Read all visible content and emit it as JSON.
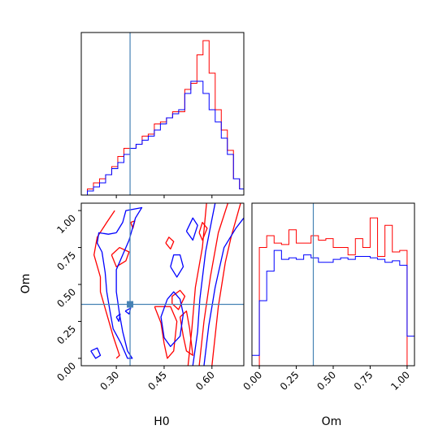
{
  "chart_data": [
    {
      "type": "histogram",
      "panel": "H0 marginal",
      "x_range": [
        0.19,
        0.7
      ],
      "truth": 0.3431,
      "colors": {
        "red": "#ff0000",
        "blue": "#0000ff",
        "truth": "#4682b4"
      },
      "series": [
        {
          "color": "red",
          "edges": [
            0.19,
            0.2091,
            0.2282,
            0.2473,
            0.2664,
            0.2855,
            0.3046,
            0.3237,
            0.3428,
            0.3619,
            0.381,
            0.4001,
            0.4192,
            0.4383,
            0.4574,
            0.4765,
            0.4956,
            0.5147,
            0.5338,
            0.5529,
            0.572,
            0.5911,
            0.6102,
            0.6293,
            0.6484,
            0.6675,
            0.6866,
            0.7
          ],
          "values": [
            0,
            3,
            6,
            8,
            10,
            14,
            19,
            23,
            23,
            25,
            29,
            30,
            35,
            36,
            38,
            41,
            41,
            52,
            55,
            69,
            76,
            60,
            42,
            32,
            22,
            8,
            3
          ]
        },
        {
          "color": "blue",
          "edges": [
            0.19,
            0.2091,
            0.2282,
            0.2473,
            0.2664,
            0.2855,
            0.3046,
            0.3237,
            0.3428,
            0.3619,
            0.381,
            0.4001,
            0.4192,
            0.4383,
            0.4574,
            0.4765,
            0.4956,
            0.5147,
            0.5338,
            0.5529,
            0.572,
            0.5911,
            0.6102,
            0.6293,
            0.6484,
            0.6675,
            0.6866,
            0.7
          ],
          "values": [
            0,
            2,
            4,
            6,
            10,
            13,
            16,
            20,
            23,
            25,
            27,
            29,
            32,
            35,
            38,
            40,
            42,
            50,
            56,
            56,
            50,
            42,
            36,
            28,
            20,
            8,
            3
          ]
        }
      ]
    },
    {
      "type": "contour",
      "panel": "H0 vs Om",
      "xlabel": "H0",
      "ylabel": "Om",
      "xlim": [
        0.19,
        0.7
      ],
      "ylim": [
        -0.05,
        1.05
      ],
      "x_ticks": [
        "0.30",
        "0.45",
        "0.60"
      ],
      "x_tick_values": [
        0.3,
        0.45,
        0.6
      ],
      "y_ticks": [
        "0.00",
        "0.25",
        "0.50",
        "0.75",
        "1.00"
      ],
      "y_tick_values": [
        0.0,
        0.25,
        0.5,
        0.75,
        1.0
      ],
      "truth": {
        "x": 0.3431,
        "y": 0.3653
      },
      "contours": [
        {
          "color": "red",
          "points": [
            [
              0.525,
              -0.05
            ],
            [
              0.537,
              0.2
            ],
            [
              0.548,
              0.48
            ],
            [
              0.57,
              0.75
            ],
            [
              0.583,
              1.05
            ]
          ]
        },
        {
          "color": "red",
          "points": [
            [
              0.56,
              -0.05
            ],
            [
              0.575,
              0.25
            ],
            [
              0.595,
              0.55
            ],
            [
              0.62,
              0.85
            ],
            [
              0.65,
              1.05
            ]
          ]
        },
        {
          "color": "red",
          "points": [
            [
              0.6,
              -0.05
            ],
            [
              0.62,
              0.35
            ],
            [
              0.642,
              0.65
            ],
            [
              0.66,
              0.82
            ],
            [
              0.69,
              1.05
            ]
          ]
        },
        {
          "color": "red",
          "points": [
            [
              0.295,
              1.0
            ],
            [
              0.27,
              0.92
            ],
            [
              0.24,
              0.82
            ],
            [
              0.23,
              0.7
            ],
            [
              0.25,
              0.55
            ],
            [
              0.25,
              0.45
            ],
            [
              0.27,
              0.3
            ],
            [
              0.29,
              0.15
            ],
            [
              0.31,
              0.02
            ],
            [
              0.3,
              0.0
            ]
          ]
        },
        {
          "color": "red",
          "points": [
            [
              0.42,
              0.35
            ],
            [
              0.44,
              0.24
            ],
            [
              0.45,
              0.1
            ],
            [
              0.46,
              0.0
            ],
            [
              0.48,
              0.05
            ],
            [
              0.49,
              0.25
            ],
            [
              0.47,
              0.35
            ],
            [
              0.42,
              0.35
            ]
          ]
        },
        {
          "color": "red",
          "points": [
            [
              0.5,
              0.28
            ],
            [
              0.51,
              0.15
            ],
            [
              0.52,
              0.05
            ],
            [
              0.54,
              0.02
            ],
            [
              0.53,
              0.2
            ],
            [
              0.52,
              0.32
            ],
            [
              0.5,
              0.28
            ]
          ]
        },
        {
          "color": "red",
          "points": [
            [
              0.285,
              0.7
            ],
            [
              0.3,
              0.62
            ],
            [
              0.33,
              0.66
            ],
            [
              0.34,
              0.72
            ],
            [
              0.31,
              0.75
            ],
            [
              0.285,
              0.7
            ]
          ]
        },
        {
          "color": "red",
          "points": [
            [
              0.475,
              0.37
            ],
            [
              0.495,
              0.33
            ],
            [
              0.515,
              0.42
            ],
            [
              0.5,
              0.46
            ],
            [
              0.475,
              0.42
            ],
            [
              0.475,
              0.37
            ]
          ]
        },
        {
          "color": "red",
          "points": [
            [
              0.455,
              0.78
            ],
            [
              0.47,
              0.74
            ],
            [
              0.48,
              0.79
            ],
            [
              0.465,
              0.82
            ],
            [
              0.455,
              0.78
            ]
          ]
        },
        {
          "color": "red",
          "points": [
            [
              0.56,
              0.85
            ],
            [
              0.57,
              0.8
            ],
            [
              0.585,
              0.88
            ],
            [
              0.57,
              0.92
            ],
            [
              0.56,
              0.85
            ]
          ]
        },
        {
          "color": "red",
          "points": [
            [
              0.345,
              0.92
            ],
            [
              0.352,
              0.88
            ],
            [
              0.358,
              0.93
            ],
            [
              0.345,
              0.92
            ]
          ]
        },
        {
          "color": "blue",
          "points": [
            [
              0.54,
              -0.05
            ],
            [
              0.555,
              0.18
            ],
            [
              0.562,
              0.4
            ],
            [
              0.58,
              0.72
            ],
            [
              0.598,
              0.92
            ],
            [
              0.61,
              1.05
            ]
          ]
        },
        {
          "color": "blue",
          "points": [
            [
              0.575,
              -0.05
            ],
            [
              0.59,
              0.22
            ],
            [
              0.61,
              0.48
            ],
            [
              0.638,
              0.75
            ],
            [
              0.675,
              0.88
            ],
            [
              0.7,
              0.95
            ]
          ]
        },
        {
          "color": "blue",
          "points": [
            [
              0.3,
              0.85
            ],
            [
              0.32,
              0.92
            ],
            [
              0.33,
              1.0
            ],
            [
              0.38,
              1.02
            ],
            [
              0.36,
              0.95
            ],
            [
              0.34,
              0.8
            ],
            [
              0.32,
              0.7
            ],
            [
              0.3,
              0.6
            ],
            [
              0.3,
              0.45
            ],
            [
              0.31,
              0.3
            ],
            [
              0.32,
              0.18
            ],
            [
              0.335,
              0.05
            ],
            [
              0.35,
              0.0
            ],
            [
              0.335,
              0.0
            ],
            [
              0.315,
              0.1
            ],
            [
              0.29,
              0.2
            ],
            [
              0.28,
              0.32
            ],
            [
              0.27,
              0.45
            ],
            [
              0.265,
              0.58
            ],
            [
              0.255,
              0.72
            ],
            [
              0.24,
              0.78
            ],
            [
              0.245,
              0.85
            ],
            [
              0.275,
              0.84
            ],
            [
              0.3,
              0.85
            ]
          ]
        },
        {
          "color": "blue",
          "points": [
            [
              0.46,
              0.4
            ],
            [
              0.44,
              0.28
            ],
            [
              0.45,
              0.14
            ],
            [
              0.47,
              0.08
            ],
            [
              0.5,
              0.15
            ],
            [
              0.51,
              0.3
            ],
            [
              0.5,
              0.4
            ],
            [
              0.48,
              0.45
            ],
            [
              0.46,
              0.4
            ]
          ]
        },
        {
          "color": "blue",
          "points": [
            [
              0.22,
              0.05
            ],
            [
              0.235,
              0.0
            ],
            [
              0.25,
              0.02
            ],
            [
              0.24,
              0.07
            ],
            [
              0.22,
              0.05
            ]
          ]
        },
        {
          "color": "blue",
          "points": [
            [
              0.47,
              0.62
            ],
            [
              0.49,
              0.55
            ],
            [
              0.51,
              0.62
            ],
            [
              0.5,
              0.7
            ],
            [
              0.48,
              0.7
            ],
            [
              0.47,
              0.62
            ]
          ]
        },
        {
          "color": "blue",
          "points": [
            [
              0.52,
              0.86
            ],
            [
              0.54,
              0.8
            ],
            [
              0.555,
              0.9
            ],
            [
              0.54,
              0.95
            ],
            [
              0.52,
              0.86
            ]
          ]
        },
        {
          "color": "blue",
          "points": [
            [
              0.3,
              0.28
            ],
            [
              0.308,
              0.25
            ],
            [
              0.312,
              0.3
            ],
            [
              0.3,
              0.28
            ]
          ]
        },
        {
          "color": "blue",
          "points": [
            [
              0.328,
              0.32
            ],
            [
              0.34,
              0.3
            ],
            [
              0.345,
              0.34
            ],
            [
              0.328,
              0.32
            ]
          ]
        }
      ]
    },
    {
      "type": "histogram",
      "panel": "Om marginal",
      "xlabel": "Om",
      "x_range": [
        -0.05,
        1.05
      ],
      "truth": 0.3653,
      "x_ticks": [
        "0.00",
        "0.25",
        "0.50",
        "0.75",
        "1.00"
      ],
      "x_tick_values": [
        0.0,
        0.25,
        0.5,
        0.75,
        1.0
      ],
      "series": [
        {
          "color": "red",
          "edges": [
            0.0,
            0.05,
            0.1,
            0.15,
            0.2,
            0.25,
            0.3,
            0.35,
            0.4,
            0.45,
            0.5,
            0.55,
            0.6,
            0.65,
            0.7,
            0.75,
            0.8,
            0.85,
            0.9,
            0.95,
            1.0
          ],
          "values": [
            80,
            88,
            83,
            82,
            92,
            83,
            83,
            88,
            85,
            86,
            80,
            80,
            75,
            86,
            80,
            100,
            74,
            95,
            77,
            78
          ]
        },
        {
          "color": "blue",
          "edges": [
            -0.05,
            0.0,
            0.05,
            0.1,
            0.15,
            0.2,
            0.25,
            0.3,
            0.35,
            0.4,
            0.45,
            0.5,
            0.55,
            0.6,
            0.65,
            0.7,
            0.75,
            0.8,
            0.85,
            0.9,
            0.95,
            1.0,
            1.05
          ],
          "values": [
            7,
            44,
            64,
            78,
            72,
            73,
            72,
            75,
            73,
            70,
            70,
            72,
            73,
            72,
            74,
            74,
            73,
            72,
            70,
            71,
            68,
            20
          ]
        }
      ]
    }
  ]
}
